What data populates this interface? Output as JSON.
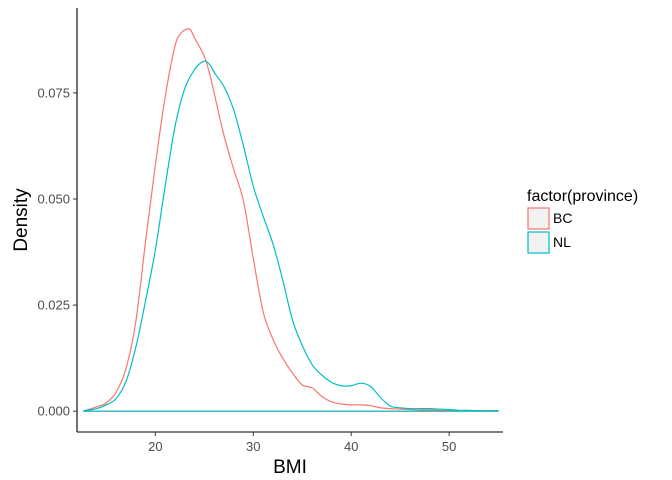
{
  "chart_data": {
    "type": "line",
    "title": "",
    "xlabel": "BMI",
    "ylabel": "Density",
    "xlim": [
      12,
      55.5
    ],
    "ylim": [
      -0.0049,
      0.095
    ],
    "x_ticks": [
      20,
      30,
      40,
      50
    ],
    "x_tick_labels": [
      "20",
      "30",
      "40",
      "50"
    ],
    "y_ticks": [
      0,
      0.025,
      0.05,
      0.075
    ],
    "y_tick_labels": [
      "0.000",
      "0.025",
      "0.050",
      "0.075"
    ],
    "grid": false,
    "legend": {
      "title": "factor(province)",
      "position": "right",
      "entries": [
        "BC",
        "NL"
      ]
    },
    "series": [
      {
        "name": "BC",
        "color": "#F8766D",
        "x": [
          12.7,
          14,
          15,
          16,
          17,
          18,
          19,
          20,
          21,
          22,
          22.6,
          23.2,
          23.6,
          24.1,
          24.6,
          25.1,
          25.6,
          26.1,
          27,
          28,
          29,
          30,
          31,
          32,
          33,
          34,
          35,
          36,
          37,
          38,
          39,
          40,
          41,
          42,
          43,
          44,
          45,
          46,
          47,
          48,
          49,
          50,
          51,
          52,
          53,
          54,
          55
        ],
        "values": [
          0.0001,
          0.001,
          0.002,
          0.0045,
          0.01,
          0.021,
          0.04,
          0.058,
          0.074,
          0.086,
          0.089,
          0.09,
          0.0898,
          0.0875,
          0.0855,
          0.083,
          0.079,
          0.074,
          0.065,
          0.057,
          0.0495,
          0.036,
          0.0235,
          0.017,
          0.0125,
          0.009,
          0.0062,
          0.0055,
          0.0035,
          0.0022,
          0.0017,
          0.0015,
          0.0015,
          0.0013,
          0.0008,
          0.0006,
          0.0005,
          0.0004,
          0.0003,
          0.0003,
          0.0002,
          0.0002,
          0.0001,
          0.0001,
          0.0001,
          0.0001,
          0.0001
        ]
      },
      {
        "name": "NL",
        "color": "#00BFC4",
        "x": [
          12.7,
          14,
          15,
          16,
          17,
          18,
          19,
          20,
          21,
          22,
          23,
          24,
          24.6,
          25.1,
          25.6,
          26.1,
          27,
          28,
          29,
          30,
          31,
          32,
          33,
          34,
          35,
          36,
          37,
          38,
          39,
          40,
          41,
          42,
          43,
          44,
          45,
          46,
          47,
          48,
          49,
          50,
          51,
          52,
          53,
          54,
          55
        ],
        "values": [
          0.0001,
          0.0006,
          0.0015,
          0.003,
          0.007,
          0.015,
          0.026,
          0.038,
          0.053,
          0.067,
          0.076,
          0.0805,
          0.082,
          0.0825,
          0.0815,
          0.0795,
          0.0765,
          0.071,
          0.0625,
          0.053,
          0.046,
          0.0395,
          0.031,
          0.0215,
          0.0155,
          0.011,
          0.0085,
          0.0068,
          0.006,
          0.006,
          0.0066,
          0.0058,
          0.0032,
          0.0012,
          0.0008,
          0.0006,
          0.0006,
          0.0006,
          0.0005,
          0.0004,
          0.0002,
          0.0002,
          0.0001,
          0.0001,
          0.0001
        ]
      }
    ]
  }
}
